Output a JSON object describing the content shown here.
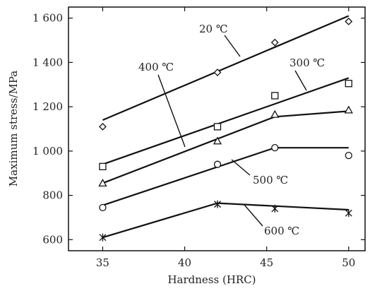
{
  "chart_data": {
    "type": "line",
    "xlabel": "Hardness (HRC)",
    "ylabel": "Maximum stress/MPa",
    "xlim": [
      33,
      51
    ],
    "ylim": [
      550,
      1650
    ],
    "x_ticks": [
      35,
      40,
      45,
      50
    ],
    "x_tick_labels": [
      "35",
      "40",
      "45",
      "50"
    ],
    "y_ticks": [
      600,
      800,
      1000,
      1200,
      1400,
      1600
    ],
    "y_tick_labels": [
      "600",
      "800",
      "1 000",
      "1 200",
      "1 400",
      "1 600"
    ],
    "grid": false,
    "series": [
      {
        "name": "20 ℃",
        "marker": "diamond",
        "points": [
          [
            35,
            1110
          ],
          [
            42,
            1355
          ],
          [
            45.5,
            1490
          ],
          [
            50,
            1585
          ]
        ],
        "fit": [
          [
            35,
            1140
          ],
          [
            50,
            1610
          ]
        ]
      },
      {
        "name": "300 ℃",
        "marker": "square",
        "points": [
          [
            35,
            930
          ],
          [
            42,
            1110
          ],
          [
            45.5,
            1250
          ],
          [
            50,
            1305
          ]
        ],
        "fit": [
          [
            35,
            940
          ],
          [
            50,
            1330
          ]
        ]
      },
      {
        "name": "400 ℃",
        "marker": "triangle",
        "points": [
          [
            35,
            855
          ],
          [
            42,
            1045
          ],
          [
            45.5,
            1165
          ],
          [
            50,
            1185
          ]
        ],
        "fit": [
          [
            35,
            855
          ],
          [
            45.5,
            1155
          ],
          [
            50,
            1180
          ]
        ]
      },
      {
        "name": "500 ℃",
        "marker": "circle",
        "points": [
          [
            35,
            745
          ],
          [
            42,
            940
          ],
          [
            45.5,
            1015
          ],
          [
            50,
            980
          ]
        ],
        "fit": [
          [
            35,
            755
          ],
          [
            45.5,
            1015
          ],
          [
            50,
            1015
          ]
        ]
      },
      {
        "name": "600 ℃",
        "marker": "star",
        "points": [
          [
            35,
            610
          ],
          [
            42,
            760
          ],
          [
            45.5,
            740
          ],
          [
            50,
            720
          ]
        ],
        "fit": [
          [
            35,
            610
          ],
          [
            42,
            765
          ],
          [
            50,
            735
          ]
        ]
      }
    ],
    "annotations": [
      {
        "text": "20 ℃",
        "series": "20 ℃"
      },
      {
        "text": "300 ℃",
        "series": "300 ℃"
      },
      {
        "text": "400 ℃",
        "series": "400 ℃"
      },
      {
        "text": "500 ℃",
        "series": "500 ℃"
      },
      {
        "text": "600 ℃",
        "series": "600 ℃"
      }
    ]
  }
}
